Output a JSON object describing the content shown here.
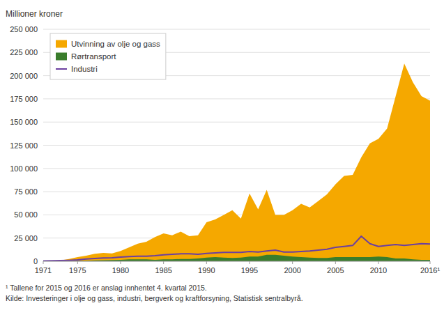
{
  "chart_data": {
    "type": "area",
    "y_label": "Millioner kroner",
    "annotations": [
      "¹ Tallene for 2015 og 2016 er anslag innhentet 4. kvartal 2015.",
      "Kilde: Investeringer i olje og gass, industri, bergverk og kraftforsyning, Statistisk sentralbyrå."
    ],
    "x": [
      1971,
      1972,
      1973,
      1974,
      1975,
      1976,
      1977,
      1978,
      1979,
      1980,
      1981,
      1982,
      1983,
      1984,
      1985,
      1986,
      1987,
      1988,
      1989,
      1990,
      1991,
      1992,
      1993,
      1994,
      1995,
      1996,
      1997,
      1998,
      1999,
      2000,
      2001,
      2002,
      2003,
      2004,
      2005,
      2006,
      2007,
      2008,
      2009,
      2010,
      2011,
      2012,
      2013,
      2014,
      2015,
      2016
    ],
    "series": [
      {
        "name": "Utvinning av olje og gass",
        "type": "area",
        "color": "#F5A800",
        "values": [
          300,
          500,
          1000,
          2500,
          4500,
          6000,
          8000,
          9000,
          8500,
          11000,
          15000,
          19000,
          21000,
          26000,
          30000,
          28000,
          32000,
          27000,
          28000,
          42000,
          45000,
          50000,
          55000,
          46000,
          73000,
          56000,
          77000,
          50000,
          50000,
          55000,
          62000,
          58000,
          65000,
          72000,
          83000,
          92000,
          93000,
          112000,
          127000,
          132000,
          143000,
          178000,
          213000,
          193000,
          178000,
          173000
        ]
      },
      {
        "name": "Rørtransport",
        "type": "area",
        "color": "#3A7D2C",
        "values": [
          0,
          0,
          0,
          100,
          300,
          600,
          900,
          1200,
          1400,
          1500,
          2000,
          2000,
          2000,
          1500,
          2000,
          2000,
          2500,
          2500,
          3000,
          4000,
          4500,
          4000,
          3500,
          4000,
          5000,
          5000,
          7000,
          7000,
          6000,
          5000,
          4500,
          4000,
          3500,
          3500,
          4500,
          4500,
          4500,
          4500,
          4500,
          5000,
          4500,
          3000,
          3000,
          2000,
          1500,
          1500
        ]
      },
      {
        "name": "Industri",
        "type": "line",
        "color": "#6B3FA0",
        "values": [
          300,
          500,
          700,
          1000,
          1500,
          2500,
          3000,
          3500,
          3800,
          4500,
          5000,
          5500,
          5500,
          6000,
          7000,
          7500,
          8000,
          8000,
          7500,
          8500,
          9000,
          9500,
          9500,
          9500,
          10500,
          10000,
          11000,
          12000,
          10000,
          10000,
          10500,
          11000,
          12000,
          13000,
          15000,
          16000,
          17000,
          27000,
          19000,
          16000,
          17000,
          18000,
          17000,
          18000,
          19000,
          18500
        ]
      }
    ],
    "stacked": false,
    "xlim": [
      1971,
      2016
    ],
    "xticks": [
      1971,
      1975,
      1980,
      1985,
      1990,
      1995,
      2000,
      2005,
      2010,
      {
        "value": 2016,
        "label": "2016¹"
      }
    ],
    "ylim": [
      0,
      250000
    ],
    "yticks": [
      0,
      {
        "value": 25000,
        "label": "25 000"
      },
      {
        "value": 50000,
        "label": "50 000"
      },
      {
        "value": 75000,
        "label": "75 000"
      },
      {
        "value": 100000,
        "label": "100 000"
      },
      {
        "value": 125000,
        "label": "125 000"
      },
      {
        "value": 150000,
        "label": "150 000"
      },
      {
        "value": 175000,
        "label": "175 000"
      },
      {
        "value": 200000,
        "label": "200 000"
      },
      {
        "value": 225000,
        "label": "225 000"
      },
      {
        "value": 250000,
        "label": "250 000"
      }
    ],
    "grid": true,
    "legend": "upper left"
  }
}
